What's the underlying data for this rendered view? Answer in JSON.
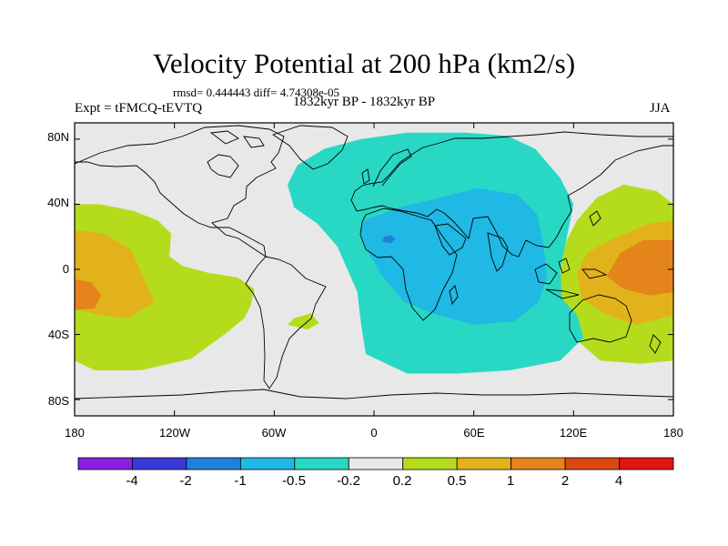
{
  "title": "Velocity Potential at 200 hPa (km2/s)",
  "stats": "rmsd= 0.444443 diff= 4.74308e-05",
  "experiment": "Expt = tFMCQ-tEVTQ",
  "period": "1832kyr BP - 1832kyr BP",
  "season": "JJA",
  "colors": {
    "background": "#e8e8e8",
    "c_lt_m4": "#8a1ee0",
    "c_m4_m2": "#3c38d8",
    "c_m2_m1": "#1e82dc",
    "c_m1_m05": "#20b8e4",
    "c_m05_m02": "#28d8c4",
    "c_m02_02": "#e8e8e8",
    "c_02_05": "#b4dc1c",
    "c_05_1": "#e2b21c",
    "c_1_2": "#e4841a",
    "c_2_4": "#dc4812",
    "c_gt_4": "#e21414",
    "coast": "#000000"
  },
  "chart_data": {
    "type": "heatmap",
    "title": "Velocity Potential at 200 hPa (km2/s)",
    "variable": "velocity potential difference",
    "units": "km2/s",
    "projection": "cylindrical equidistant",
    "xlim": [
      -180,
      180
    ],
    "ylim": [
      -90,
      90
    ],
    "x_ticks": [
      -180,
      -120,
      -60,
      0,
      60,
      120,
      180
    ],
    "x_tick_labels": [
      "180",
      "120W",
      "60W",
      "0",
      "60E",
      "120E",
      "180"
    ],
    "y_ticks": [
      80,
      40,
      0,
      -40,
      -80
    ],
    "y_tick_labels": [
      "80N",
      "40N",
      "0",
      "40S",
      "80S"
    ],
    "levels": [
      -4,
      -2,
      -1,
      -0.5,
      -0.2,
      0.2,
      0.5,
      1,
      2,
      4
    ],
    "level_labels": [
      "-4",
      "-2",
      "-1",
      "-0.5",
      "-0.2",
      "0.2",
      "0.5",
      "1",
      "2",
      "4"
    ],
    "regions": [
      {
        "name": "Pacific positive",
        "bin": "c_02_05",
        "points": [
          [
            -180,
            40
          ],
          [
            -165,
            40
          ],
          [
            -145,
            36
          ],
          [
            -130,
            30
          ],
          [
            -122,
            22
          ],
          [
            -123,
            8
          ],
          [
            -115,
            2
          ],
          [
            -100,
            -2
          ],
          [
            -82,
            -5
          ],
          [
            -72,
            -12
          ],
          [
            -74,
            -22
          ],
          [
            -78,
            -30
          ],
          [
            -90,
            -40
          ],
          [
            -110,
            -55
          ],
          [
            -140,
            -62
          ],
          [
            -168,
            -62
          ],
          [
            -180,
            -56
          ]
        ]
      },
      {
        "name": "Pacific positive",
        "bin": "c_02_05",
        "points": [
          [
            180,
            40
          ],
          [
            170,
            48
          ],
          [
            150,
            52
          ],
          [
            134,
            44
          ],
          [
            122,
            30
          ],
          [
            114,
            14
          ],
          [
            112,
            -4
          ],
          [
            110,
            -20
          ],
          [
            118,
            -40
          ],
          [
            136,
            -56
          ],
          [
            160,
            -58
          ],
          [
            180,
            -56
          ]
        ]
      },
      {
        "name": "South Atlantic blob",
        "bin": "c_02_05",
        "points": [
          [
            -48,
            -30
          ],
          [
            -38,
            -27
          ],
          [
            -33,
            -33
          ],
          [
            -40,
            -37
          ],
          [
            -52,
            -34
          ]
        ]
      },
      {
        "name": "East Pacific blob",
        "bin": "c_02_05",
        "points": [
          [
            -108,
            -18
          ],
          [
            -100,
            -15
          ],
          [
            -95,
            -20
          ],
          [
            -102,
            -24
          ],
          [
            -110,
            -22
          ]
        ]
      },
      {
        "name": "Pacific center",
        "bin": "c_05_1",
        "points": [
          [
            -180,
            24
          ],
          [
            -162,
            22
          ],
          [
            -146,
            12
          ],
          [
            -140,
            -2
          ],
          [
            -132,
            -20
          ],
          [
            -148,
            -30
          ],
          [
            -166,
            -28
          ],
          [
            -180,
            -24
          ]
        ]
      },
      {
        "name": "West Pacific center",
        "bin": "c_05_1",
        "points": [
          [
            180,
            30
          ],
          [
            165,
            28
          ],
          [
            142,
            18
          ],
          [
            128,
            10
          ],
          [
            122,
            -2
          ],
          [
            125,
            -18
          ],
          [
            140,
            -28
          ],
          [
            158,
            -34
          ],
          [
            180,
            -28
          ]
        ]
      },
      {
        "name": "Pacific core",
        "bin": "c_1_2",
        "points": [
          [
            -180,
            -6
          ],
          [
            -170,
            -8
          ],
          [
            -164,
            -16
          ],
          [
            -168,
            -24
          ],
          [
            -180,
            -25
          ]
        ]
      },
      {
        "name": "West Pacific core",
        "bin": "c_1_2",
        "points": [
          [
            180,
            18
          ],
          [
            162,
            18
          ],
          [
            148,
            10
          ],
          [
            140,
            -4
          ],
          [
            150,
            -12
          ],
          [
            166,
            -16
          ],
          [
            180,
            -14
          ]
        ]
      },
      {
        "name": "Atlantic-Africa negative",
        "bin": "c_m05_m02",
        "points": [
          [
            -52,
            52
          ],
          [
            -46,
            64
          ],
          [
            -30,
            74
          ],
          [
            -8,
            80
          ],
          [
            20,
            84
          ],
          [
            55,
            84
          ],
          [
            80,
            82
          ],
          [
            97,
            74
          ],
          [
            112,
            56
          ],
          [
            120,
            40
          ],
          [
            116,
            20
          ],
          [
            112,
            0
          ],
          [
            113,
            -18
          ],
          [
            122,
            -28
          ],
          [
            126,
            -42
          ],
          [
            112,
            -56
          ],
          [
            82,
            -62
          ],
          [
            50,
            -64
          ],
          [
            20,
            -64
          ],
          [
            -5,
            -52
          ],
          [
            -8,
            -32
          ],
          [
            -10,
            -14
          ],
          [
            -16,
            0
          ],
          [
            -22,
            14
          ],
          [
            -34,
            28
          ],
          [
            -48,
            38
          ]
        ]
      },
      {
        "name": "Africa core",
        "bin": "c_m1_m05",
        "points": [
          [
            -6,
            30
          ],
          [
            15,
            38
          ],
          [
            40,
            44
          ],
          [
            62,
            50
          ],
          [
            86,
            46
          ],
          [
            98,
            34
          ],
          [
            102,
            14
          ],
          [
            104,
            -4
          ],
          [
            99,
            -20
          ],
          [
            84,
            -32
          ],
          [
            60,
            -34
          ],
          [
            38,
            -28
          ],
          [
            18,
            -20
          ],
          [
            5,
            -4
          ],
          [
            -3,
            10
          ],
          [
            -8,
            22
          ]
        ]
      },
      {
        "name": "Sahara minimum",
        "bin": "c_m2_m1",
        "points": [
          [
            6,
            20
          ],
          [
            10,
            21
          ],
          [
            13,
            19
          ],
          [
            10,
            16
          ],
          [
            5,
            17
          ]
        ]
      }
    ],
    "value_range": [
      -2,
      2
    ]
  }
}
